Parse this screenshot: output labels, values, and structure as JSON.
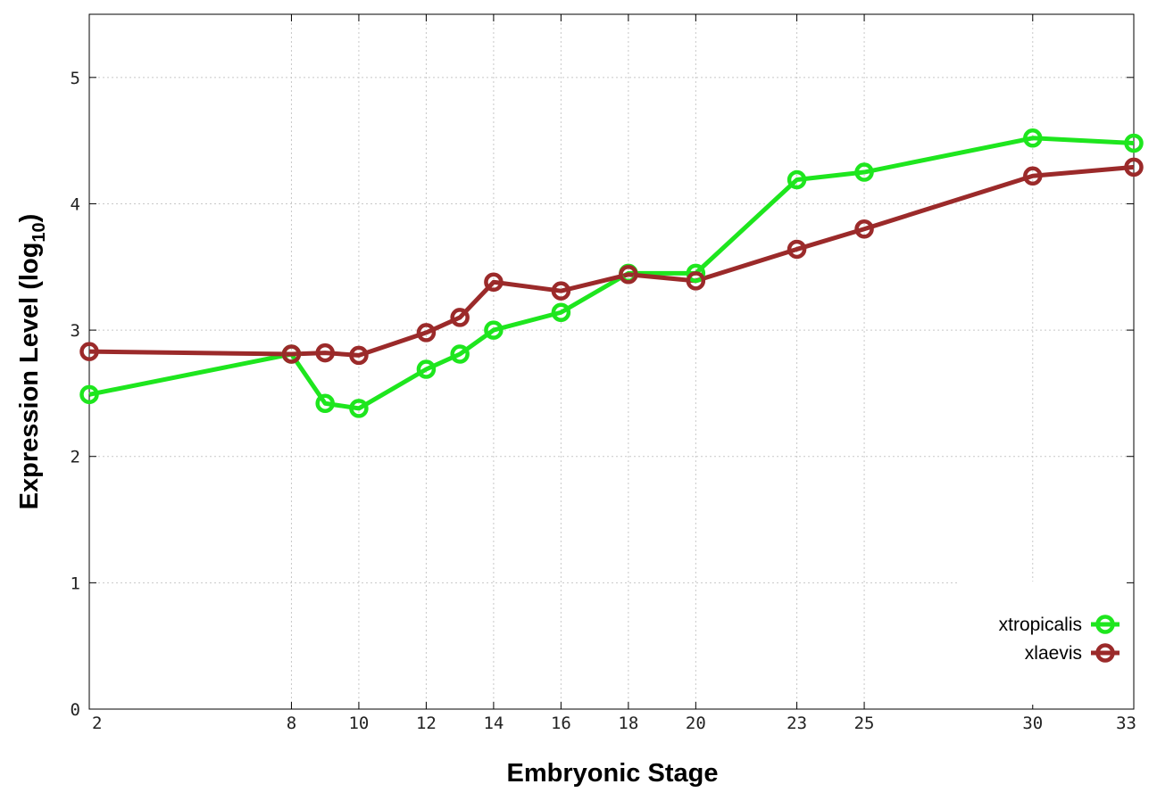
{
  "chart_data": {
    "type": "line",
    "xlabel": "Embryonic Stage",
    "ylabel_main": "Expression Level (log",
    "ylabel_sub": "10",
    "ylabel_end": ")",
    "xlim": [
      2,
      33
    ],
    "ylim": [
      0,
      5.5
    ],
    "x_ticks": [
      2,
      8,
      10,
      12,
      14,
      16,
      18,
      20,
      23,
      25,
      30,
      33
    ],
    "x_tick_labels": [
      "2",
      "8",
      "10",
      "12",
      "14",
      "16",
      "18",
      "20",
      "23",
      "25",
      "30",
      "33"
    ],
    "y_ticks": [
      0,
      1,
      2,
      3,
      4,
      5
    ],
    "y_tick_labels": [
      "0",
      "1",
      "2",
      "3",
      "4",
      "5"
    ],
    "grid": true,
    "legend_position": "bottom-right",
    "x": [
      2,
      8,
      9,
      10,
      12,
      13,
      14,
      16,
      18,
      20,
      23,
      25,
      30,
      33
    ],
    "series": [
      {
        "name": "xtropicalis",
        "color": "#1ee61e",
        "values": [
          2.49,
          2.81,
          2.42,
          2.38,
          2.69,
          2.81,
          3.0,
          3.14,
          3.45,
          3.45,
          4.19,
          4.25,
          4.52,
          4.48
        ]
      },
      {
        "name": "xlaevis",
        "color": "#9b2a2a",
        "values": [
          2.83,
          2.81,
          2.82,
          2.8,
          2.98,
          3.1,
          3.38,
          3.31,
          3.44,
          3.39,
          3.64,
          3.8,
          4.22,
          4.29
        ]
      }
    ]
  }
}
